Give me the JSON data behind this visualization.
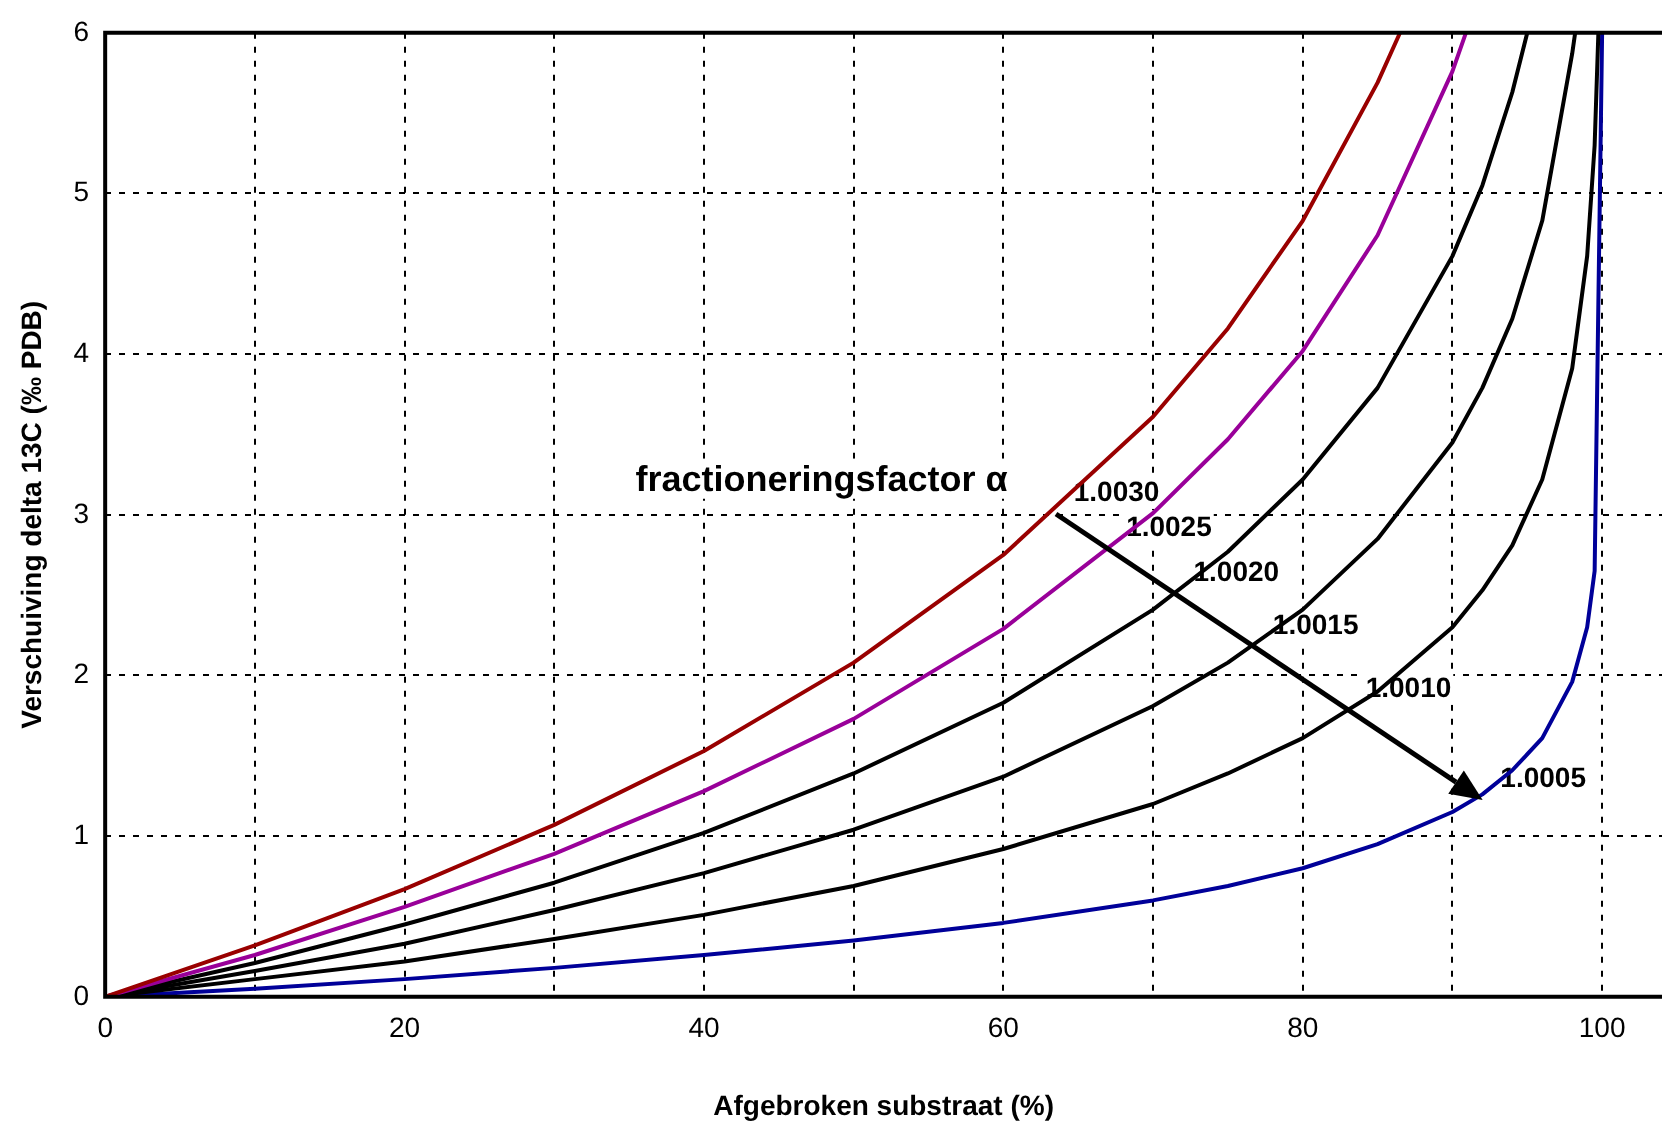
{
  "chart_data": {
    "type": "line",
    "xlabel": "Afgebroken substraat (%)",
    "ylabel": "Verschuiving delta 13C (‰ PDB)",
    "xlim": [
      0,
      104
    ],
    "ylim": [
      0,
      6
    ],
    "xticks": [
      0,
      {
        "value": 10,
        "label": null
      },
      20,
      {
        "value": 30,
        "label": null
      },
      40,
      {
        "value": 50,
        "label": null
      },
      60,
      {
        "value": 70,
        "label": null
      },
      80,
      {
        "value": 90,
        "label": null
      },
      100
    ],
    "yticks": [
      0,
      1,
      2,
      3,
      4,
      5,
      6
    ],
    "grid": true,
    "marker": "none",
    "line_style": "solid",
    "series": [
      {
        "color": "#990000",
        "x": [
          0,
          10,
          20,
          30,
          40,
          50,
          60,
          70,
          75,
          80,
          85,
          86.5
        ],
        "values": [
          0,
          0.32,
          0.67,
          1.07,
          1.53,
          2.08,
          2.75,
          3.61,
          4.16,
          4.83,
          5.69,
          6
        ]
      },
      {
        "color": "#990099",
        "x": [
          0,
          10,
          20,
          30,
          40,
          50,
          60,
          70,
          75,
          80,
          85,
          90,
          90.9
        ],
        "values": [
          0,
          0.26,
          0.56,
          0.89,
          1.28,
          1.73,
          2.29,
          3.01,
          3.47,
          4.02,
          4.74,
          5.76,
          6
        ]
      },
      {
        "color": "#000000",
        "x": [
          0,
          10,
          20,
          30,
          40,
          50,
          60,
          70,
          75,
          80,
          85,
          90,
          92,
          94,
          95
        ],
        "values": [
          0,
          0.21,
          0.45,
          0.71,
          1.02,
          1.39,
          1.83,
          2.41,
          2.77,
          3.22,
          3.79,
          4.61,
          5.05,
          5.63,
          6
        ]
      },
      {
        "color": "#000000",
        "x": [
          0,
          10,
          20,
          30,
          40,
          50,
          60,
          70,
          75,
          80,
          85,
          90,
          92,
          94,
          96,
          98,
          98.2
        ],
        "values": [
          0,
          0.16,
          0.33,
          0.54,
          0.77,
          1.04,
          1.37,
          1.81,
          2.08,
          2.41,
          2.85,
          3.45,
          3.79,
          4.22,
          4.83,
          5.87,
          6
        ]
      },
      {
        "color": "#000000",
        "x": [
          0,
          10,
          20,
          30,
          40,
          50,
          60,
          70,
          75,
          80,
          85,
          90,
          92,
          94,
          96,
          98,
          99,
          99.5,
          99.75
        ],
        "values": [
          0,
          0.11,
          0.22,
          0.36,
          0.51,
          0.69,
          0.92,
          1.2,
          1.39,
          1.61,
          1.9,
          2.3,
          2.53,
          2.81,
          3.22,
          3.91,
          4.61,
          5.3,
          6
        ]
      },
      {
        "color": "#000099",
        "x": [
          0,
          10,
          20,
          30,
          40,
          50,
          60,
          70,
          75,
          80,
          85,
          90,
          92,
          94,
          96,
          98,
          99,
          99.5,
          100
        ],
        "values": [
          0,
          0.05,
          0.11,
          0.18,
          0.26,
          0.35,
          0.46,
          0.6,
          0.69,
          0.8,
          0.95,
          1.15,
          1.26,
          1.41,
          1.61,
          1.96,
          2.3,
          2.65,
          6
        ]
      }
    ],
    "annotations": [
      "fractioneringsfactor α",
      {
        "text": "1.0030",
        "x": 63.5,
        "y": 3.0
      },
      {
        "text": "1.0025",
        "x": 67,
        "y": 2.78
      },
      {
        "text": "1.0020",
        "x": 71.5,
        "y": 2.5
      },
      {
        "text": "1.0015",
        "x": 76.8,
        "y": 2.17
      },
      {
        "text": "1.0010",
        "x": 83,
        "y": 1.78
      },
      {
        "text": "1.0005",
        "x": 92,
        "y": 1.22
      }
    ]
  }
}
